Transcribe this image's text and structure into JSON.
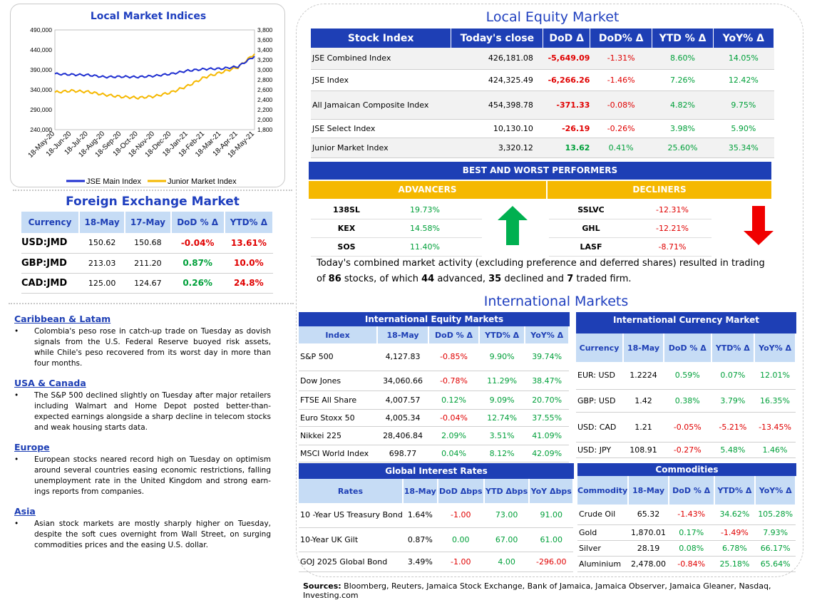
{
  "chart": {
    "title": "Local Market Indices",
    "left_ticks": [
      "490,000",
      "440,000",
      "390,000",
      "340,000",
      "290,000",
      "240,000"
    ],
    "right_ticks": [
      "3,800",
      "3,600",
      "3,400",
      "3,200",
      "3,000",
      "2,800",
      "2,600",
      "2,400",
      "2,200",
      "2,000",
      "1,800"
    ],
    "x_ticks": [
      "18-May-20",
      "18-Jun-20",
      "18-Jul-20",
      "18-Aug-20",
      "18-Sep-20",
      "18-Oct-20",
      "18-Nov-20",
      "18-Dec-20",
      "18-Jan-21",
      "18-Feb-21",
      "18-Mar-21",
      "18-Apr-21",
      "18-May-21"
    ],
    "legend_main": "JSE Main Index",
    "legend_junior": "Junior Market Index",
    "color_main": "#1f2fd0",
    "color_junior": "#f5b800"
  },
  "chart_data": {
    "type": "line",
    "title": "Local Market Indices",
    "x": [
      "18-May-20",
      "18-Jun-20",
      "18-Jul-20",
      "18-Aug-20",
      "18-Sep-20",
      "18-Oct-20",
      "18-Nov-20",
      "18-Dec-20",
      "18-Jan-21",
      "18-Feb-21",
      "18-Mar-21",
      "18-Apr-21",
      "18-May-21"
    ],
    "series": [
      {
        "name": "JSE Main Index",
        "axis": "left",
        "values": [
          380000,
          378000,
          377000,
          372000,
          373000,
          372000,
          375000,
          380000,
          388000,
          392000,
          393000,
          398000,
          424000
        ]
      },
      {
        "name": "Junior Market Index",
        "axis": "right",
        "values": [
          2550,
          2580,
          2560,
          2500,
          2460,
          2440,
          2470,
          2550,
          2680,
          2850,
          2950,
          3050,
          3320
        ]
      }
    ],
    "ylim_left": [
      240000,
      490000
    ],
    "ylim_right": [
      1800,
      3800
    ],
    "legend": "bottom"
  },
  "fx": {
    "title": "Foreign Exchange Market",
    "headers": [
      "Currency",
      "18-May",
      "17-May",
      "DoD % Δ",
      "YTD% Δ"
    ],
    "rows": [
      {
        "cur": "USD:JMD",
        "a": "150.62",
        "b": "150.68",
        "dod": "-0.04%",
        "ytd": "13.61%"
      },
      {
        "cur": "GBP:JMD",
        "a": "213.03",
        "b": "211.20",
        "dod": "0.87%",
        "ytd": "10.0%"
      },
      {
        "cur": "CAD:JMD",
        "a": "125.00",
        "b": "124.67",
        "dod": "0.26%",
        "ytd": "24.8%"
      }
    ]
  },
  "news": [
    {
      "heading": "Caribbean & Latam",
      "text": "Colombia's peso rose in catch-up trade on Tuesday as dovish signals from the U.S. Federal Reserve buoyed risk assets, while Chile's peso recovered from its worst day in more than four months."
    },
    {
      "heading": "USA & Canada",
      "text": "The S&P 500 declined slightly on Tuesday after major retailers including Walmart and Home Depot posted better-than-expected earnings alongside a sharp decline in telecom stocks and weak housing starts data."
    },
    {
      "heading": "Europe",
      "text": "European stocks neared record high on Tuesday on optimism around several countries easing economic restrictions, falling unemployment rate in the United Kingdom and strong earn-ings reports from companies."
    },
    {
      "heading": "Asia",
      "text": "Asian stock markets are mostly sharply higher on Tuesday, despite the soft cues overnight from Wall Street, on surging commodities prices and the easing U.S. dollar."
    }
  ],
  "equity": {
    "title": "Local Equity Market",
    "headers": [
      "Stock Index",
      "Today's close",
      "DoD  Δ",
      "DoD% Δ",
      "YTD % Δ",
      "YoY% Δ"
    ],
    "rows": [
      {
        "name": "JSE Combined Index",
        "close": "426,181.08",
        "dod": "-5,649.09",
        "dodp": "-1.31%",
        "ytd": "8.60%",
        "yoy": "14.05%"
      },
      {
        "name": "JSE Index",
        "close": "424,325.49",
        "dod": "-6,266.26",
        "dodp": "-1.46%",
        "ytd": "7.26%",
        "yoy": "12.42%"
      },
      {
        "name": "All Jamaican Composite Index",
        "close": "454,398.78",
        "dod": "-371.33",
        "dodp": "-0.08%",
        "ytd": "4.82%",
        "yoy": "9.75%"
      },
      {
        "name": "JSE Select Index",
        "close": "10,130.10",
        "dod": "-26.19",
        "dodp": "-0.26%",
        "ytd": "3.98%",
        "yoy": "5.90%"
      },
      {
        "name": "Junior Market Index",
        "close": "3,320.12",
        "dod": "13.62",
        "dodp": "0.41%",
        "ytd": "25.60%",
        "yoy": "35.34%"
      }
    ]
  },
  "performers": {
    "title": "BEST AND WORST PERFORMERS",
    "adv_label": "ADVANCERS",
    "dec_label": "DECLINERS",
    "advancers": [
      {
        "sym": "138SL",
        "pct": "19.73%"
      },
      {
        "sym": "KEX",
        "pct": "14.58%"
      },
      {
        "sym": "SOS",
        "pct": "11.40%"
      }
    ],
    "decliners": [
      {
        "sym": "SSLVC",
        "pct": "-12.31%"
      },
      {
        "sym": "GHL",
        "pct": "-12.21%"
      },
      {
        "sym": "LASF",
        "pct": "-8.71%"
      }
    ]
  },
  "summary": {
    "p1": "Today's combined market activity (excluding preference and deferred shares) resulted in trading of ",
    "n1": "86",
    "p2": " stocks, of which ",
    "n2": "44",
    "p3": " advanced, ",
    "n3": "35",
    "p4": " declined and ",
    "n4": "7",
    "p5": " traded firm."
  },
  "intl": {
    "title": "International Markets",
    "equity_title": "International Equity Markets",
    "equity_headers": [
      "Index",
      "18-May",
      "DoD % Δ",
      "YTD% Δ",
      "YoY% Δ"
    ],
    "equity_rows": [
      {
        "name": "S&P 500",
        "v": "4,127.83",
        "dod": "-0.85%",
        "ytd": "9.90%",
        "yoy": "39.74%"
      },
      {
        "name": "Dow Jones",
        "v": "34,060.66",
        "dod": "-0.78%",
        "ytd": "11.29%",
        "yoy": "38.47%"
      },
      {
        "name": "FTSE All Share",
        "v": "4,007.57",
        "dod": "0.12%",
        "ytd": "9.09%",
        "yoy": "20.70%"
      },
      {
        "name": "Euro Stoxx 50",
        "v": "4,005.34",
        "dod": "-0.04%",
        "ytd": "12.74%",
        "yoy": "37.55%"
      },
      {
        "name": "Nikkei 225",
        "v": "28,406.84",
        "dod": "2.09%",
        "ytd": "3.51%",
        "yoy": "41.09%"
      },
      {
        "name": "MSCI World Index",
        "v": "698.77",
        "dod": "0.04%",
        "ytd": "8.12%",
        "yoy": "42.09%"
      }
    ],
    "currency_title": "International Currency Market",
    "currency_headers": [
      "Currency",
      "18-May",
      "DoD % Δ",
      "YTD% Δ",
      "YoY% Δ"
    ],
    "currency_rows": [
      {
        "name": "EUR: USD",
        "v": "1.2224",
        "dod": "0.59%",
        "ytd": "0.07%",
        "yoy": "12.01%"
      },
      {
        "name": "GBP: USD",
        "v": "1.42",
        "dod": "0.38%",
        "ytd": "3.79%",
        "yoy": "16.35%"
      },
      {
        "name": "USD: CAD",
        "v": "1.21",
        "dod": "-0.05%",
        "ytd": "-5.21%",
        "yoy": "-13.45%"
      },
      {
        "name": "USD: JPY",
        "v": "108.91",
        "dod": "-0.27%",
        "ytd": "5.48%",
        "yoy": "1.46%"
      }
    ],
    "rates_title": "Global Interest Rates",
    "rates_headers": [
      "Rates",
      "18-May",
      "DoD Δbps",
      "YTD Δbps",
      "YoY Δbps"
    ],
    "rates_rows": [
      {
        "name": "10 -Year US Treasury Bond",
        "v": "1.64%",
        "dod": "-1.00",
        "ytd": "73.00",
        "yoy": "91.00"
      },
      {
        "name": "10-Year UK Gilt",
        "v": "0.87%",
        "dod": "0.00",
        "ytd": "67.00",
        "yoy": "61.00"
      },
      {
        "name": "GOJ 2025 Global Bond",
        "v": "3.49%",
        "dod": "-1.00",
        "ytd": "4.00",
        "yoy": "-296.00"
      }
    ],
    "comm_title": "Commodities",
    "comm_headers": [
      "Commodity",
      "18-May",
      "DoD % Δ",
      "YTD% Δ",
      "YoY% Δ"
    ],
    "comm_rows": [
      {
        "name": "Crude Oil",
        "v": "65.32",
        "dod": "-1.43%",
        "ytd": "34.62%",
        "yoy": "105.28%"
      },
      {
        "name": "Gold",
        "v": "1,870.01",
        "dod": "0.17%",
        "ytd": "-1.49%",
        "yoy": "7.93%"
      },
      {
        "name": "Silver",
        "v": "28.19",
        "dod": "0.08%",
        "ytd": "6.78%",
        "yoy": "66.17%"
      },
      {
        "name": "Aluminium",
        "v": "2,478.00",
        "dod": "-0.84%",
        "ytd": "25.18%",
        "yoy": "65.64%"
      }
    ]
  },
  "sources": {
    "label": "Sources:",
    "text": " Bloomberg, Reuters, Jamaica Stock Exchange, Bank of Jamaica, Jamaica Observer, Jamaica Gleaner, Nasdaq, Investing.com"
  }
}
